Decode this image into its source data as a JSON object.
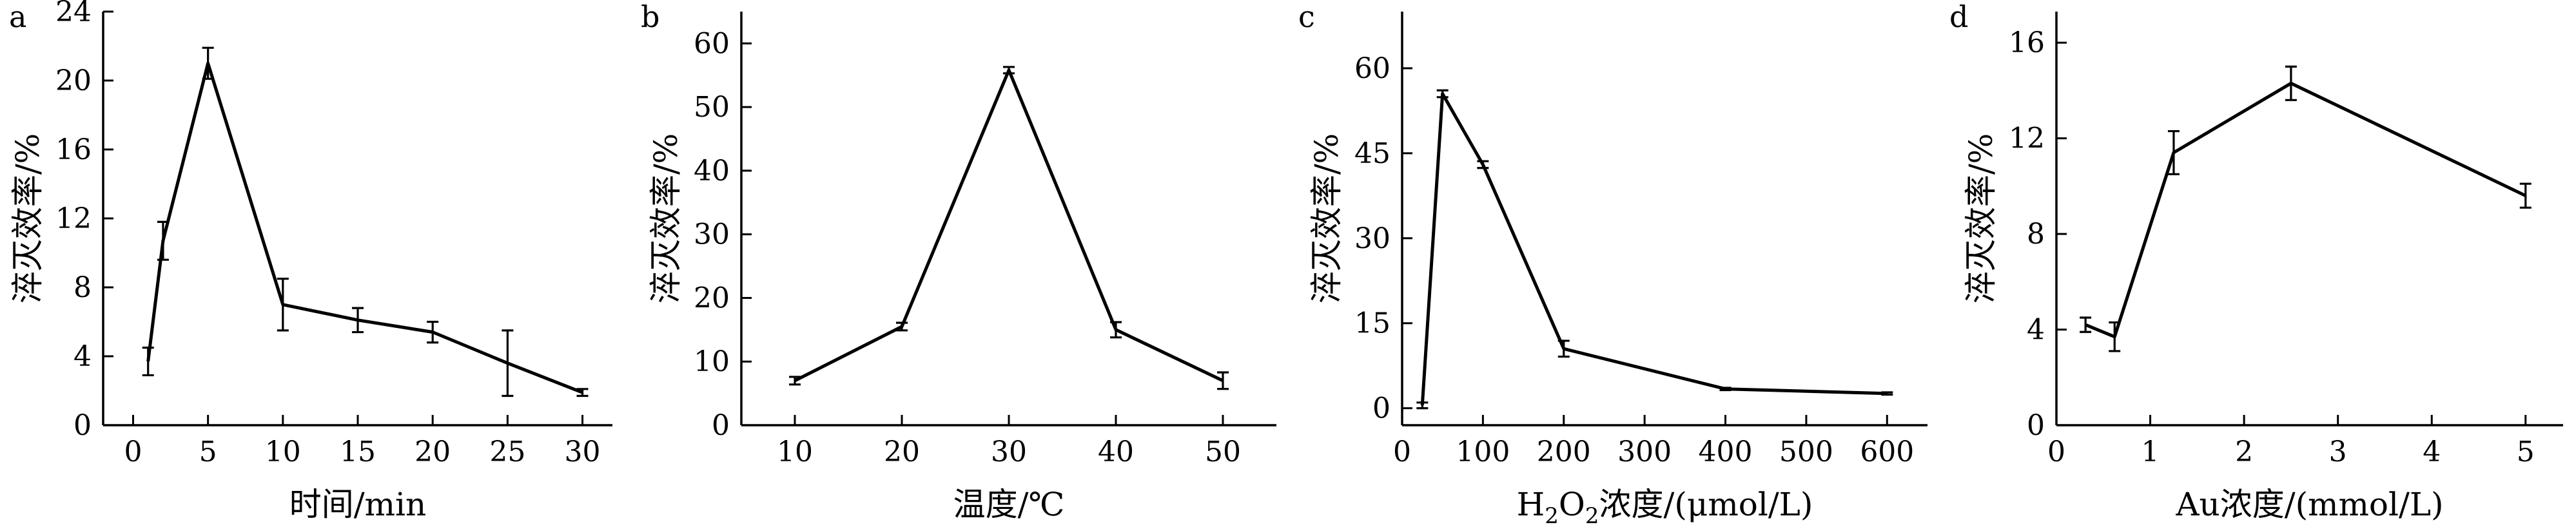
{
  "chart_data": [
    {
      "id": "a",
      "type": "line",
      "panel_label": "a",
      "xlabel": "时间/min",
      "ylabel": "淬灭效率/%",
      "xlim": [
        -2,
        32
      ],
      "ylim": [
        0,
        24
      ],
      "xticks": [
        0,
        5,
        10,
        15,
        20,
        25,
        30
      ],
      "yticks": [
        0,
        4,
        8,
        12,
        16,
        20,
        24
      ],
      "points": [
        {
          "x": 1,
          "y": 3.7,
          "err": 0.8
        },
        {
          "x": 2,
          "y": 10.7,
          "err": 1.1
        },
        {
          "x": 5,
          "y": 21.0,
          "err": 0.9
        },
        {
          "x": 10,
          "y": 7.0,
          "err": 1.5
        },
        {
          "x": 15,
          "y": 6.1,
          "err": 0.7
        },
        {
          "x": 20,
          "y": 5.4,
          "err": 0.6
        },
        {
          "x": 25,
          "y": 3.6,
          "err": 1.9
        },
        {
          "x": 30,
          "y": 1.9,
          "err": 0.2
        }
      ]
    },
    {
      "id": "b",
      "type": "line",
      "panel_label": "b",
      "xlabel": "温度/℃",
      "ylabel": "淬灭效率/%",
      "xlim": [
        5,
        55
      ],
      "ylim": [
        0,
        65
      ],
      "xticks": [
        10,
        20,
        30,
        40,
        50
      ],
      "yticks": [
        0,
        10,
        20,
        30,
        40,
        50,
        60
      ],
      "points": [
        {
          "x": 10,
          "y": 7.0,
          "err": 0.6
        },
        {
          "x": 20,
          "y": 15.5,
          "err": 0.6
        },
        {
          "x": 30,
          "y": 55.8,
          "err": 0.5
        },
        {
          "x": 40,
          "y": 15.0,
          "err": 1.2
        },
        {
          "x": 50,
          "y": 7.0,
          "err": 1.3
        }
      ]
    },
    {
      "id": "c",
      "type": "line",
      "panel_label": "c",
      "xlabel_main": "H",
      "xlabel_sub1": "2",
      "xlabel_mid": "O",
      "xlabel_sub2": "2",
      "xlabel_rest": "浓度/(μmol/L)",
      "ylabel": "淬灭效率/%",
      "xlim": [
        0,
        650
      ],
      "ylim": [
        -3,
        70
      ],
      "xticks": [
        0,
        100,
        200,
        300,
        400,
        500,
        600
      ],
      "yticks": [
        0,
        15,
        30,
        45,
        60
      ],
      "points": [
        {
          "x": 25,
          "y": 0.5,
          "err": 0.5
        },
        {
          "x": 50,
          "y": 55.5,
          "err": 0.6
        },
        {
          "x": 100,
          "y": 43.0,
          "err": 0.6
        },
        {
          "x": 200,
          "y": 10.5,
          "err": 1.4
        },
        {
          "x": 400,
          "y": 3.4,
          "err": 0.2
        },
        {
          "x": 600,
          "y": 2.6,
          "err": 0.2
        }
      ]
    },
    {
      "id": "d",
      "type": "line",
      "panel_label": "d",
      "xlabel": "Au浓度/(mmol/L)",
      "ylabel": "淬灭效率/%",
      "xlim": [
        0,
        5.4
      ],
      "ylim": [
        0,
        17.3
      ],
      "xticks": [
        0,
        1,
        2,
        3,
        4,
        5
      ],
      "yticks": [
        0,
        4,
        8,
        12,
        16
      ],
      "points": [
        {
          "x": 0.31,
          "y": 4.2,
          "err": 0.3
        },
        {
          "x": 0.62,
          "y": 3.7,
          "err": 0.6
        },
        {
          "x": 1.25,
          "y": 11.4,
          "err": 0.9
        },
        {
          "x": 2.5,
          "y": 14.3,
          "err": 0.7
        },
        {
          "x": 5.0,
          "y": 9.6,
          "err": 0.5
        }
      ]
    }
  ]
}
